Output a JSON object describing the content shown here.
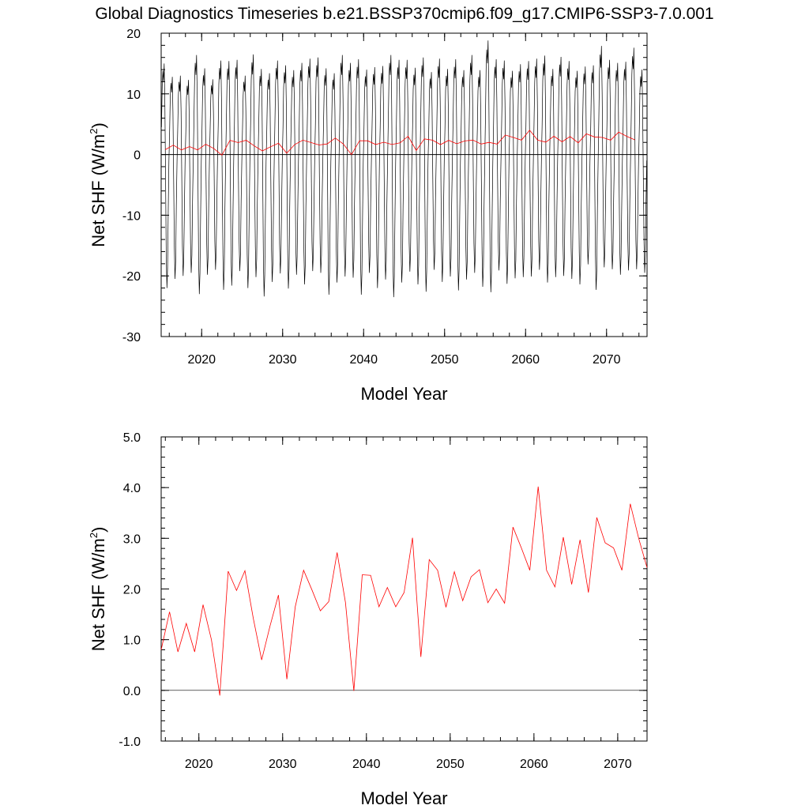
{
  "title": "Global Diagnostics Timeseries b.e21.BSSP370cmip6.f09_g17.CMIP6-SSP3-7.0.001",
  "colors": {
    "monthly": "#000000",
    "annual": "#ff0000",
    "zero_line": "#000000"
  },
  "chart_data": [
    {
      "type": "line",
      "xlabel": "Model Year",
      "ylabel_main": "Net SHF (W/m",
      "ylabel_sup": "2",
      "ylabel_tail": ")",
      "xlim": [
        2015,
        2075
      ],
      "ylim": [
        -30,
        20
      ],
      "x_ticks": [
        2020,
        2030,
        2040,
        2050,
        2060,
        2070
      ],
      "x_tick_labels": [
        "2020",
        "2030",
        "2040",
        "2050",
        "2060",
        "2070"
      ],
      "y_ticks": [
        -30,
        -20,
        -10,
        0,
        10,
        20
      ],
      "y_tick_labels": [
        "-30",
        "-20",
        "-10",
        "0",
        "10",
        "20"
      ],
      "reference_line_y": 0,
      "series": [
        {
          "kind": "monthly",
          "start_year": 2015,
          "months_per_year": 12,
          "annual_min": [
            -22.0,
            -20.5,
            -20.0,
            -19.5,
            -23.0,
            -19.8,
            -19.0,
            -22.3,
            -21.6,
            -19.2,
            -22.0,
            -20.2,
            -23.4,
            -21.0,
            -19.6,
            -22.1,
            -19.8,
            -21.4,
            -19.2,
            -19.5,
            -23.1,
            -21.1,
            -20.1,
            -20.3,
            -23.1,
            -19.5,
            -22.0,
            -20.6,
            -23.5,
            -21.1,
            -19.3,
            -21.4,
            -22.6,
            -19.0,
            -21.0,
            -20.1,
            -22.4,
            -20.6,
            -19.5,
            -21.8,
            -22.7,
            -19.1,
            -21.3,
            -20.4,
            -20.2,
            -20.1,
            -19.0,
            -21.1,
            -20.2,
            -20.0,
            -20.5,
            -21.4,
            -18.1,
            -22.3,
            -18.6,
            -18.9,
            -19.8,
            -19.1,
            -18.9,
            -19.5
          ],
          "annual_max": [
            15.0,
            12.8,
            13.0,
            12.3,
            16.4,
            14.2,
            12.4,
            15.5,
            15.4,
            15.6,
            13.0,
            16.5,
            14.1,
            13.4,
            15.5,
            14.7,
            13.9,
            15.1,
            15.8,
            16.0,
            14.2,
            13.4,
            16.4,
            15.1,
            15.7,
            14.0,
            14.4,
            14.6,
            16.4,
            15.6,
            15.6,
            14.3,
            16.0,
            13.6,
            15.8,
            14.1,
            15.7,
            13.9,
            16.4,
            13.9,
            18.8,
            15.7,
            15.5,
            13.8,
            14.9,
            15.4,
            15.8,
            16.3,
            14.1,
            16.1,
            15.4,
            13.8,
            14.5,
            14.7,
            17.9,
            15.6,
            15.1,
            15.3,
            17.6,
            14.0
          ]
        },
        {
          "kind": "annual",
          "x": [
            2015.5,
            2016.5,
            2017.5,
            2018.5,
            2019.5,
            2020.5,
            2021.5,
            2022.5,
            2023.5,
            2024.5,
            2025.5,
            2026.5,
            2027.5,
            2028.5,
            2029.5,
            2030.5,
            2031.5,
            2032.5,
            2033.5,
            2034.5,
            2035.5,
            2036.5,
            2037.5,
            2038.5,
            2039.5,
            2040.5,
            2041.5,
            2042.5,
            2043.5,
            2044.5,
            2045.5,
            2046.5,
            2047.5,
            2048.5,
            2049.5,
            2050.5,
            2051.5,
            2052.5,
            2053.5,
            2054.5,
            2055.5,
            2056.5,
            2057.5,
            2058.5,
            2059.5,
            2060.5,
            2061.5,
            2062.5,
            2063.5,
            2064.5,
            2065.5,
            2066.5,
            2067.5,
            2068.5,
            2069.5,
            2070.5,
            2071.5,
            2072.5,
            2073.5
          ],
          "y": [
            0.8,
            1.55,
            0.76,
            1.32,
            0.76,
            1.69,
            1.0,
            -0.1,
            2.35,
            1.97,
            2.36,
            1.42,
            0.6,
            1.27,
            1.88,
            0.22,
            1.65,
            2.37,
            1.98,
            1.57,
            1.75,
            2.72,
            1.73,
            -0.01,
            2.28,
            2.27,
            1.65,
            2.03,
            1.65,
            1.93,
            3.01,
            0.66,
            2.58,
            2.37,
            1.64,
            2.34,
            1.77,
            2.24,
            2.38,
            1.73,
            2.0,
            1.72,
            3.22,
            2.81,
            2.37,
            4.02,
            2.37,
            2.04,
            3.02,
            2.09,
            2.97,
            1.93,
            3.41,
            2.91,
            2.81,
            2.37,
            3.68,
            3.0,
            2.42
          ]
        }
      ]
    },
    {
      "type": "line",
      "xlabel": "Model Year",
      "ylabel_main": "Net SHF (W/m",
      "ylabel_sup": "2",
      "ylabel_tail": ")",
      "xlim": [
        2015.5,
        2073.5
      ],
      "ylim": [
        -1.0,
        5.0
      ],
      "x_ticks": [
        2020,
        2030,
        2040,
        2050,
        2060,
        2070
      ],
      "x_tick_labels": [
        "2020",
        "2030",
        "2040",
        "2050",
        "2060",
        "2070"
      ],
      "y_ticks": [
        -1,
        0,
        1,
        2,
        3,
        4,
        5
      ],
      "y_tick_labels": [
        "-1.0",
        "0.0",
        "1.0",
        "2.0",
        "3.0",
        "4.0",
        "5.0"
      ],
      "reference_line_y": 0,
      "series": [
        {
          "kind": "annual",
          "x": [
            2015.5,
            2016.5,
            2017.5,
            2018.5,
            2019.5,
            2020.5,
            2021.5,
            2022.5,
            2023.5,
            2024.5,
            2025.5,
            2026.5,
            2027.5,
            2028.5,
            2029.5,
            2030.5,
            2031.5,
            2032.5,
            2033.5,
            2034.5,
            2035.5,
            2036.5,
            2037.5,
            2038.5,
            2039.5,
            2040.5,
            2041.5,
            2042.5,
            2043.5,
            2044.5,
            2045.5,
            2046.5,
            2047.5,
            2048.5,
            2049.5,
            2050.5,
            2051.5,
            2052.5,
            2053.5,
            2054.5,
            2055.5,
            2056.5,
            2057.5,
            2058.5,
            2059.5,
            2060.5,
            2061.5,
            2062.5,
            2063.5,
            2064.5,
            2065.5,
            2066.5,
            2067.5,
            2068.5,
            2069.5,
            2070.5,
            2071.5,
            2072.5,
            2073.5
          ],
          "y": [
            0.8,
            1.55,
            0.76,
            1.32,
            0.76,
            1.69,
            1.0,
            -0.1,
            2.35,
            1.97,
            2.36,
            1.42,
            0.6,
            1.27,
            1.88,
            0.22,
            1.65,
            2.37,
            1.98,
            1.57,
            1.75,
            2.72,
            1.73,
            -0.01,
            2.28,
            2.27,
            1.65,
            2.03,
            1.65,
            1.93,
            3.01,
            0.66,
            2.58,
            2.37,
            1.64,
            2.34,
            1.77,
            2.24,
            2.38,
            1.73,
            2.0,
            1.72,
            3.22,
            2.81,
            2.37,
            4.02,
            2.37,
            2.04,
            3.02,
            2.09,
            2.97,
            1.93,
            3.41,
            2.91,
            2.81,
            2.37,
            3.68,
            3.0,
            2.42
          ]
        }
      ]
    }
  ]
}
